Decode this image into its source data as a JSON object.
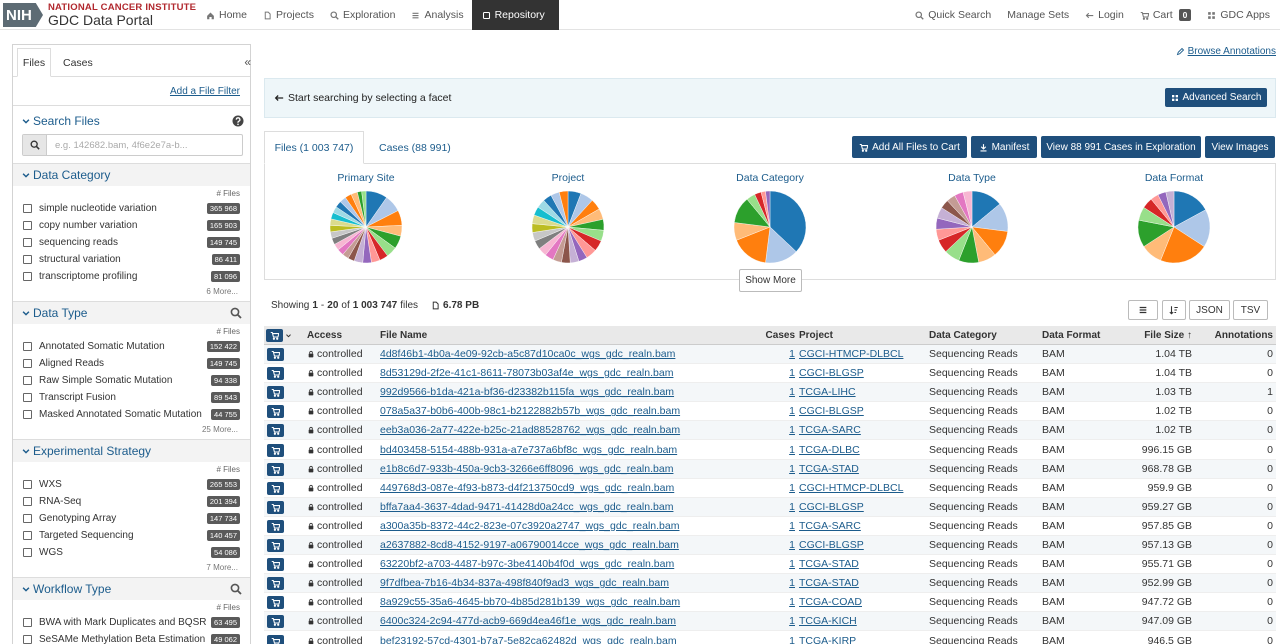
{
  "header": {
    "logo": "NIH",
    "org": "NATIONAL CANCER INSTITUTE",
    "portal": "GDC Data Portal",
    "nav": [
      "Home",
      "Projects",
      "Exploration",
      "Analysis",
      "Repository"
    ],
    "active": 4,
    "right": [
      "Quick Search",
      "Manage Sets",
      "Login",
      "Cart",
      "GDC Apps"
    ],
    "cart_count": 0
  },
  "sidebar": {
    "tabs": [
      "Files",
      "Cases"
    ],
    "collapse": "«",
    "add_filter": "Add a File Filter",
    "search": {
      "title": "Search Files",
      "placeholder": "e.g. 142682.bam, 4f6e2e7a-b..."
    },
    "facets": [
      {
        "title": "Data Category",
        "searchable": false,
        "count_header": "# Files",
        "items": [
          {
            "label": "simple nucleotide variation",
            "count": "365 968"
          },
          {
            "label": "copy number variation",
            "count": "165 903"
          },
          {
            "label": "sequencing reads",
            "count": "149 745"
          },
          {
            "label": "structural variation",
            "count": "86 411"
          },
          {
            "label": "transcriptome profiling",
            "count": "81 096"
          }
        ],
        "more": "6 More..."
      },
      {
        "title": "Data Type",
        "searchable": true,
        "count_header": "# Files",
        "items": [
          {
            "label": "Annotated Somatic Mutation",
            "count": "152 422"
          },
          {
            "label": "Aligned Reads",
            "count": "149 745"
          },
          {
            "label": "Raw Simple Somatic Mutation",
            "count": "94 338"
          },
          {
            "label": "Transcript Fusion",
            "count": "89 543"
          },
          {
            "label": "Masked Annotated Somatic Mutation",
            "count": "44 755"
          }
        ],
        "more": "25 More..."
      },
      {
        "title": "Experimental Strategy",
        "searchable": false,
        "count_header": "# Files",
        "items": [
          {
            "label": "WXS",
            "count": "265 553"
          },
          {
            "label": "RNA-Seq",
            "count": "201 394"
          },
          {
            "label": "Genotyping Array",
            "count": "147 734"
          },
          {
            "label": "Targeted Sequencing",
            "count": "140 457"
          },
          {
            "label": "WGS",
            "count": "54 086"
          }
        ],
        "more": "7 More..."
      },
      {
        "title": "Workflow Type",
        "searchable": true,
        "count_header": "# Files",
        "items": [
          {
            "label": "BWA with Mark Duplicates and BQSR",
            "count": "63 495"
          },
          {
            "label": "SeSAMe Methylation Beta Estimation",
            "count": "49 062"
          }
        ]
      }
    ]
  },
  "main": {
    "browse": "Browse Annotations",
    "hint": "Start searching by selecting a facet",
    "advanced": "Advanced Search",
    "tabs": [
      "Files (1 003 747)",
      "Cases (88 991)"
    ],
    "buttons": [
      "Add All Files to Cart",
      "Manifest",
      "View 88 991 Cases in Exploration",
      "View Images"
    ],
    "colors": [
      "#1f77b4",
      "#aec7e8",
      "#ff7f0e",
      "#ffbb78",
      "#2ca02c",
      "#98df8a",
      "#d62728",
      "#ff9896",
      "#9467bd",
      "#c5b0d5",
      "#8c564b",
      "#c49c94",
      "#e377c2",
      "#f7b6d2",
      "#7f7f7f",
      "#c7c7c7",
      "#bcbd22",
      "#dbdb8d",
      "#17becf",
      "#9edae5"
    ],
    "pies": [
      {
        "title": "Primary Site",
        "values": [
          10,
          8,
          7,
          5,
          6,
          5,
          4,
          4,
          4,
          4,
          3,
          3,
          3,
          3,
          3,
          3,
          3,
          3,
          3,
          3,
          3,
          3,
          3,
          3,
          2,
          2
        ]
      },
      {
        "title": "Project",
        "values": [
          6,
          6,
          5,
          5,
          5,
          5,
          5,
          5,
          4,
          4,
          4,
          4,
          4,
          4,
          4,
          4,
          4,
          4,
          4,
          4,
          4,
          4,
          4
        ]
      },
      {
        "title": "Data Category",
        "values": [
          37,
          15,
          17,
          8,
          12,
          4,
          3,
          2,
          2
        ]
      },
      {
        "title": "Data Type",
        "values": [
          14,
          13,
          12,
          8,
          9,
          7,
          6,
          5,
          5,
          5,
          4,
          4,
          4,
          4
        ]
      },
      {
        "title": "Data Format",
        "values": [
          14,
          14,
          18,
          8,
          10,
          5,
          4,
          3,
          3,
          3
        ]
      }
    ],
    "show_more": "Show More",
    "summary": {
      "prefix": "Showing",
      "from": "1",
      "sep": "-",
      "to": "20",
      "of": "of",
      "total": "1 003 747",
      "unit": "files",
      "size": "6.78 PB"
    },
    "tools": [
      "JSON",
      "TSV"
    ],
    "columns": [
      "Access",
      "File Name",
      "Cases",
      "Project",
      "Data Category",
      "Data Format",
      "File Size ↑",
      "Annotations"
    ],
    "rows": [
      [
        "controlled",
        "4d8f46b1-4b0a-4e09-92cb-a5c87d10ca0c_wgs_gdc_realn.bam",
        1,
        "CGCI-HTMCP-DLBCL",
        "Sequencing Reads",
        "BAM",
        "1.04 TB",
        0
      ],
      [
        "controlled",
        "8d53129d-2f2e-41c1-8611-78073b03af4e_wgs_gdc_realn.bam",
        1,
        "CGCI-BLGSP",
        "Sequencing Reads",
        "BAM",
        "1.04 TB",
        0
      ],
      [
        "controlled",
        "992d9566-b1da-421a-bf36-d23382b115fa_wgs_gdc_realn.bam",
        1,
        "TCGA-LIHC",
        "Sequencing Reads",
        "BAM",
        "1.03 TB",
        1
      ],
      [
        "controlled",
        "078a5a37-b0b6-400b-98c1-b2122882b57b_wgs_gdc_realn.bam",
        1,
        "CGCI-BLGSP",
        "Sequencing Reads",
        "BAM",
        "1.02 TB",
        0
      ],
      [
        "controlled",
        "eeb3a036-2a77-422e-b25c-21ad88528762_wgs_gdc_realn.bam",
        1,
        "TCGA-SARC",
        "Sequencing Reads",
        "BAM",
        "1.02 TB",
        0
      ],
      [
        "controlled",
        "bd403458-5154-488b-931a-a7e737a6bf8c_wgs_gdc_realn.bam",
        1,
        "TCGA-DLBC",
        "Sequencing Reads",
        "BAM",
        "996.15 GB",
        0
      ],
      [
        "controlled",
        "e1b8c6d7-933b-450a-9cb3-3266e6ff8096_wgs_gdc_realn.bam",
        1,
        "TCGA-STAD",
        "Sequencing Reads",
        "BAM",
        "968.78 GB",
        0
      ],
      [
        "controlled",
        "449768d3-087e-4f93-b873-d4f213750cd9_wgs_gdc_realn.bam",
        1,
        "CGCI-HTMCP-DLBCL",
        "Sequencing Reads",
        "BAM",
        "959.9 GB",
        0
      ],
      [
        "controlled",
        "bffa7aa4-3637-4dad-9471-41428d0a24cc_wgs_gdc_realn.bam",
        1,
        "CGCI-BLGSP",
        "Sequencing Reads",
        "BAM",
        "959.27 GB",
        0
      ],
      [
        "controlled",
        "a300a35b-8372-44c2-823e-07c3920a2747_wgs_gdc_realn.bam",
        1,
        "TCGA-SARC",
        "Sequencing Reads",
        "BAM",
        "957.85 GB",
        0
      ],
      [
        "controlled",
        "a2637882-8cd8-4152-9197-a06790014cce_wgs_gdc_realn.bam",
        1,
        "CGCI-BLGSP",
        "Sequencing Reads",
        "BAM",
        "957.13 GB",
        0
      ],
      [
        "controlled",
        "63220bf2-a703-4487-b97c-3be4140b4f0d_wgs_gdc_realn.bam",
        1,
        "TCGA-STAD",
        "Sequencing Reads",
        "BAM",
        "955.71 GB",
        0
      ],
      [
        "controlled",
        "9f7dfbea-7b16-4b34-837a-498f840f9ad3_wgs_gdc_realn.bam",
        1,
        "TCGA-STAD",
        "Sequencing Reads",
        "BAM",
        "952.99 GB",
        0
      ],
      [
        "controlled",
        "8a929c55-35a6-4645-bb70-4b85d281b139_wgs_gdc_realn.bam",
        1,
        "TCGA-COAD",
        "Sequencing Reads",
        "BAM",
        "947.72 GB",
        0
      ],
      [
        "controlled",
        "6400c324-2c94-477d-acb9-669d4ea46f1e_wgs_gdc_realn.bam",
        1,
        "TCGA-KICH",
        "Sequencing Reads",
        "BAM",
        "947.09 GB",
        0
      ],
      [
        "controlled",
        "bef23192-57cd-4301-b7a7-5e82ca62482d_wgs_gdc_realn.bam",
        1,
        "TCGA-KIRP",
        "Sequencing Reads",
        "BAM",
        "946.5 GB",
        0
      ]
    ]
  }
}
